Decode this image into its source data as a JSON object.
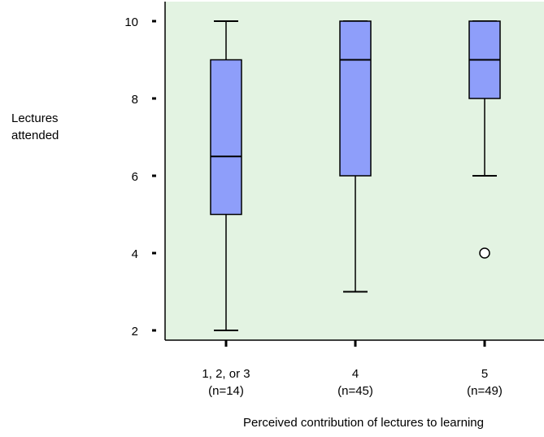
{
  "chart_data": {
    "type": "box",
    "title": "",
    "xlabel": "Perceived contribution of lectures to learning",
    "ylabel": "Lectures attended",
    "ylim": [
      1.7,
      10.2
    ],
    "yticks": [
      2,
      4,
      6,
      8,
      10
    ],
    "grid": false,
    "legend": "none",
    "categories": [
      {
        "label": "1, 2, or 3",
        "sublabel": "(n=14)",
        "min": 2,
        "q1": 5,
        "median": 6.5,
        "q3": 9,
        "max": 10,
        "outliers": []
      },
      {
        "label": "4",
        "sublabel": "(n=45)",
        "min": 3,
        "q1": 6,
        "median": 9,
        "q3": 10,
        "max": 10,
        "outliers": []
      },
      {
        "label": "5",
        "sublabel": "(n=49)",
        "min": 6,
        "q1": 8,
        "median": 9,
        "q3": 10,
        "max": 10,
        "outliers": [
          4
        ]
      }
    ],
    "colors": {
      "plot_background": "#e3f3e2",
      "box_fill": "#8e9efa",
      "line": "#000000",
      "outlier_fill": "#ffffff"
    }
  }
}
